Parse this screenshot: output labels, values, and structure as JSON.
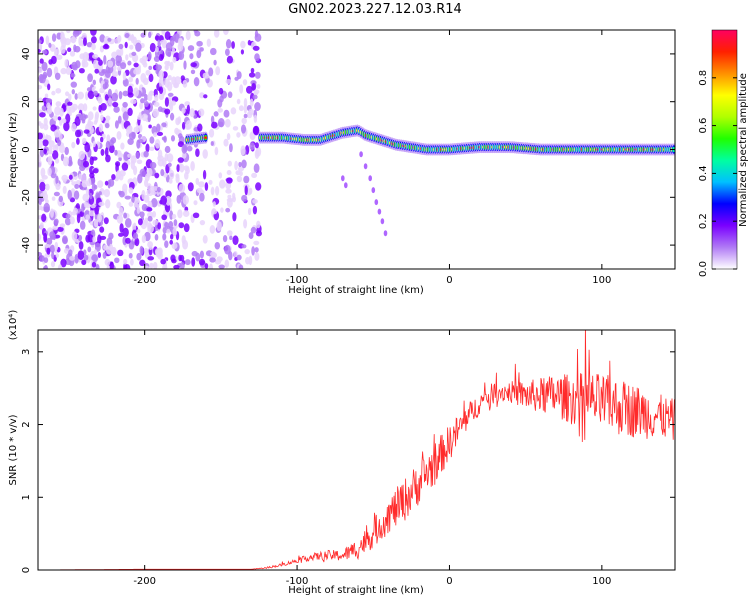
{
  "title": "GN02.2023.227.12.03.R14",
  "chart_data": [
    {
      "type": "heatmap",
      "xlabel": "Height of straight line (km)",
      "ylabel": "Frequency (Hz)",
      "xlim": [
        -270,
        148
      ],
      "ylim": [
        -50,
        50
      ],
      "xticks": [
        -200,
        -100,
        0,
        100
      ],
      "yticks": [
        -40,
        -20,
        0,
        20,
        40
      ],
      "grid": false,
      "ridge": {
        "x": [
          -172,
          -160,
          -150,
          -140,
          -125,
          -110,
          -95,
          -85,
          -70,
          -60,
          -55,
          -45,
          -35,
          -25,
          -15,
          0,
          20,
          40,
          60,
          80,
          100,
          120,
          148
        ],
        "freq": [
          4,
          5,
          4,
          4,
          5,
          5,
          4,
          4,
          7,
          8,
          6,
          4,
          2,
          1,
          0,
          0,
          1,
          1,
          0,
          0,
          0,
          0,
          0
        ]
      },
      "noise_region": {
        "x_from": -270,
        "x_to": -125
      },
      "colorbar": {
        "label": "Normalized spectral amplitude",
        "range": [
          0,
          1
        ],
        "ticks": [
          0.0,
          0.2,
          0.4,
          0.6,
          0.8
        ],
        "colors": [
          "#ffffff",
          "#b07af5",
          "#7a00ff",
          "#0000ff",
          "#00c0ff",
          "#00ffa0",
          "#20ff00",
          "#b0ff00",
          "#ffff00",
          "#ff9000",
          "#ff2000",
          "#ff0060"
        ]
      }
    },
    {
      "type": "line",
      "xlabel": "Height of straight line (km)",
      "ylabel": "SNR (10 * v/v)",
      "ylabel_multiplier": "(x10⁴)",
      "xlim": [
        -270,
        148
      ],
      "ylim": [
        0,
        3.3
      ],
      "xticks": [
        -200,
        -100,
        0,
        100
      ],
      "yticks": [
        0,
        1,
        2,
        3
      ],
      "grid": false,
      "series": [
        {
          "color": "#ff2a2a",
          "x": [
            -270,
            -200,
            -130,
            -120,
            -110,
            -100,
            -90,
            -80,
            -70,
            -60,
            -50,
            -40,
            -30,
            -20,
            -10,
            0,
            10,
            20,
            30,
            40,
            50,
            60,
            70,
            80,
            90,
            100,
            110,
            120,
            130,
            140,
            148
          ],
          "y": [
            0.0,
            0.01,
            0.01,
            0.03,
            0.07,
            0.13,
            0.18,
            0.2,
            0.2,
            0.3,
            0.5,
            0.75,
            0.95,
            1.2,
            1.45,
            1.75,
            2.05,
            2.3,
            2.45,
            2.45,
            2.4,
            2.4,
            2.4,
            2.35,
            2.35,
            2.3,
            2.25,
            2.2,
            2.15,
            2.1,
            2.05
          ],
          "noise": [
            0,
            0,
            0,
            0.01,
            0.02,
            0.03,
            0.05,
            0.07,
            0.08,
            0.15,
            0.2,
            0.25,
            0.3,
            0.3,
            0.3,
            0.25,
            0.2,
            0.15,
            0.15,
            0.15,
            0.2,
            0.25,
            0.3,
            0.35,
            0.38,
            0.4,
            0.4,
            0.38,
            0.35,
            0.3,
            0.3
          ]
        }
      ]
    }
  ]
}
